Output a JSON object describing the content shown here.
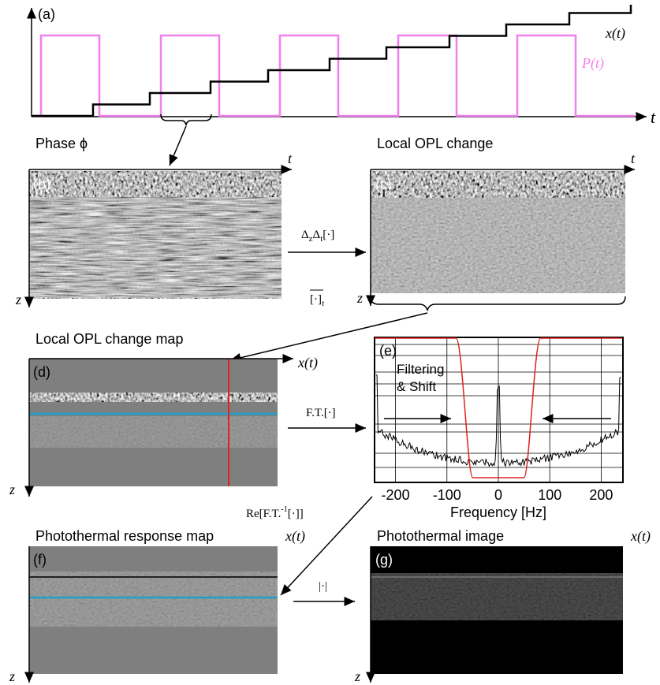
{
  "panel_a": {
    "label": "(a)",
    "x_label": "x(t)",
    "p_label": "P(t)",
    "t_label": "t"
  },
  "panel_b": {
    "title": "Phase ϕ",
    "label": "(b)",
    "t_label": "t",
    "z_label": "z"
  },
  "panel_c": {
    "title": "Local OPL change",
    "label": "(c)",
    "t_label": "t",
    "z_label": "z"
  },
  "op_diff": [
    "Δ",
    "z",
    "Δ",
    "t",
    "[·]"
  ],
  "op_mean": [
    "[·]",
    "t"
  ],
  "panel_d": {
    "title": "Local OPL change map",
    "label": "(d)",
    "x_label": "x(t)",
    "z_label": "z"
  },
  "op_ft": "F.T.[·]",
  "panel_e": {
    "label": "(e)",
    "annotation": [
      "Filtering",
      "& Shift"
    ],
    "ticks": [
      "-200",
      "-100",
      "0",
      "100",
      "200"
    ],
    "x_title": "Frequency [Hz]"
  },
  "op_ift": [
    "Re[F.T.",
    "-1",
    "[·]]"
  ],
  "panel_f": {
    "title": "Photothermal response map",
    "label": "(f)",
    "x_label": "x(t)",
    "z_label": "z"
  },
  "op_abs": "|·|",
  "panel_g": {
    "title": "Photothermal image",
    "label": "(g)",
    "x_label": "x(t)",
    "z_label": "z"
  }
}
